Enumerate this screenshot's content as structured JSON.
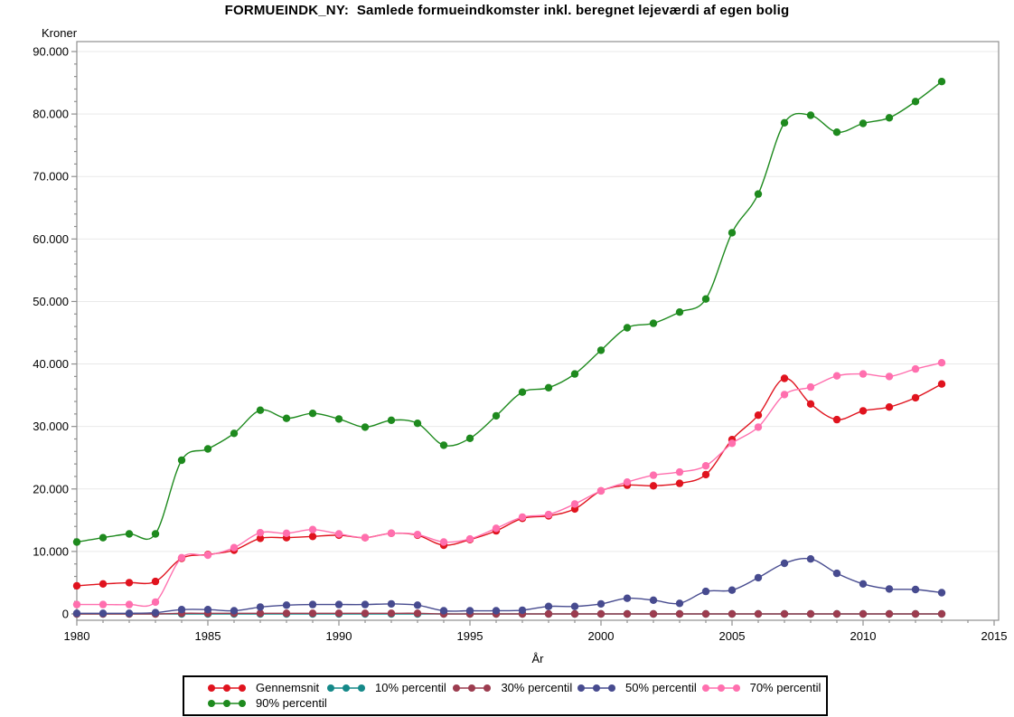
{
  "title": "FORMUEINDK_NY:  Samlede formueindkomster inkl. beregnet lejeværdi af egen bolig",
  "y_unit_label": "Kroner",
  "x_axis_title": "År",
  "colors": {
    "frame": "#8f8f8f",
    "gridline": "#e9e9e9",
    "tick": "#8f8f8f",
    "text": "#000000",
    "legend_border": "#000000"
  },
  "chart_data": {
    "type": "line",
    "title": "FORMUEINDK_NY:  Samlede formueindkomster inkl. beregnet lejeværdi af egen bolig",
    "xlabel": "År",
    "ylabel": "Kroner",
    "xlim": [
      1980,
      2015
    ],
    "ylim": [
      0,
      90000
    ],
    "grid": "horizontal",
    "legend_position": "bottom",
    "x_ticks": [
      1980,
      1985,
      1990,
      1995,
      2000,
      2005,
      2010,
      2015
    ],
    "x_tick_labels": [
      "1980",
      "1985",
      "1990",
      "1995",
      "2000",
      "2005",
      "2010",
      "2015"
    ],
    "x_minor_step": 1,
    "y_ticks": [
      0,
      10000,
      20000,
      30000,
      40000,
      50000,
      60000,
      70000,
      80000,
      90000
    ],
    "y_tick_labels": [
      "0",
      "10.000",
      "20.000",
      "30.000",
      "40.000",
      "50.000",
      "60.000",
      "70.000",
      "80.000",
      "90.000"
    ],
    "y_minor_step": 2000,
    "x": [
      1980,
      1981,
      1982,
      1983,
      1984,
      1985,
      1986,
      1987,
      1988,
      1989,
      1990,
      1991,
      1992,
      1993,
      1994,
      1995,
      1996,
      1997,
      1998,
      1999,
      2000,
      2001,
      2002,
      2003,
      2004,
      2005,
      2006,
      2007,
      2008,
      2009,
      2010,
      2011,
      2012,
      2013
    ],
    "series": [
      {
        "name": "Gennemsnit",
        "color": "#e0131e",
        "values": [
          4500,
          4800,
          5000,
          5200,
          8900,
          9500,
          10200,
          12100,
          12200,
          12400,
          12600,
          12200,
          12900,
          12600,
          11000,
          11900,
          13300,
          15300,
          15700,
          16800,
          19700,
          20600,
          20500,
          20900,
          22300,
          27900,
          31800,
          37700,
          33600,
          31100,
          32500,
          33100,
          34600,
          36800
        ]
      },
      {
        "name": "10% percentil",
        "color": "#158989",
        "values": [
          0,
          0,
          0,
          0,
          0,
          0,
          0,
          0,
          0,
          0,
          0,
          0,
          0,
          0,
          0,
          0,
          0,
          0,
          0,
          0,
          0,
          0,
          0,
          0,
          0,
          0,
          0,
          0,
          0,
          0,
          0,
          0,
          0,
          0
        ]
      },
      {
        "name": "30% percentil",
        "color": "#9c3c4f",
        "values": [
          0,
          0,
          0,
          0,
          100,
          100,
          100,
          100,
          100,
          100,
          100,
          100,
          100,
          100,
          0,
          0,
          0,
          0,
          0,
          0,
          0,
          0,
          0,
          0,
          0,
          0,
          0,
          0,
          0,
          0,
          0,
          0,
          0,
          0
        ]
      },
      {
        "name": "50% percentil",
        "color": "#474b8f",
        "values": [
          100,
          100,
          100,
          200,
          700,
          700,
          500,
          1100,
          1400,
          1500,
          1500,
          1500,
          1600,
          1400,
          500,
          500,
          500,
          600,
          1200,
          1200,
          1600,
          2500,
          2200,
          1700,
          3600,
          3800,
          5800,
          8100,
          8800,
          6500,
          4800,
          4000,
          3900,
          3400
        ]
      },
      {
        "name": "70% percentil",
        "color": "#ff6fae",
        "values": [
          1500,
          1500,
          1500,
          1900,
          9000,
          9400,
          10600,
          13000,
          12900,
          13500,
          12800,
          12200,
          12900,
          12700,
          11500,
          12000,
          13700,
          15500,
          15900,
          17600,
          19700,
          21100,
          22200,
          22700,
          23700,
          27300,
          29900,
          35100,
          36300,
          38100,
          38400,
          38000,
          39200,
          40200
        ]
      },
      {
        "name": "90% percentil",
        "color": "#1e8a1e",
        "values": [
          11500,
          12200,
          12800,
          12800,
          24600,
          26400,
          28900,
          32600,
          31300,
          32100,
          31200,
          29900,
          31000,
          30500,
          27000,
          28100,
          31700,
          35500,
          36200,
          38400,
          42200,
          45800,
          46500,
          48300,
          50400,
          61000,
          67200,
          78600,
          79800,
          77100,
          78500,
          79400,
          82000,
          85200
        ]
      }
    ]
  }
}
